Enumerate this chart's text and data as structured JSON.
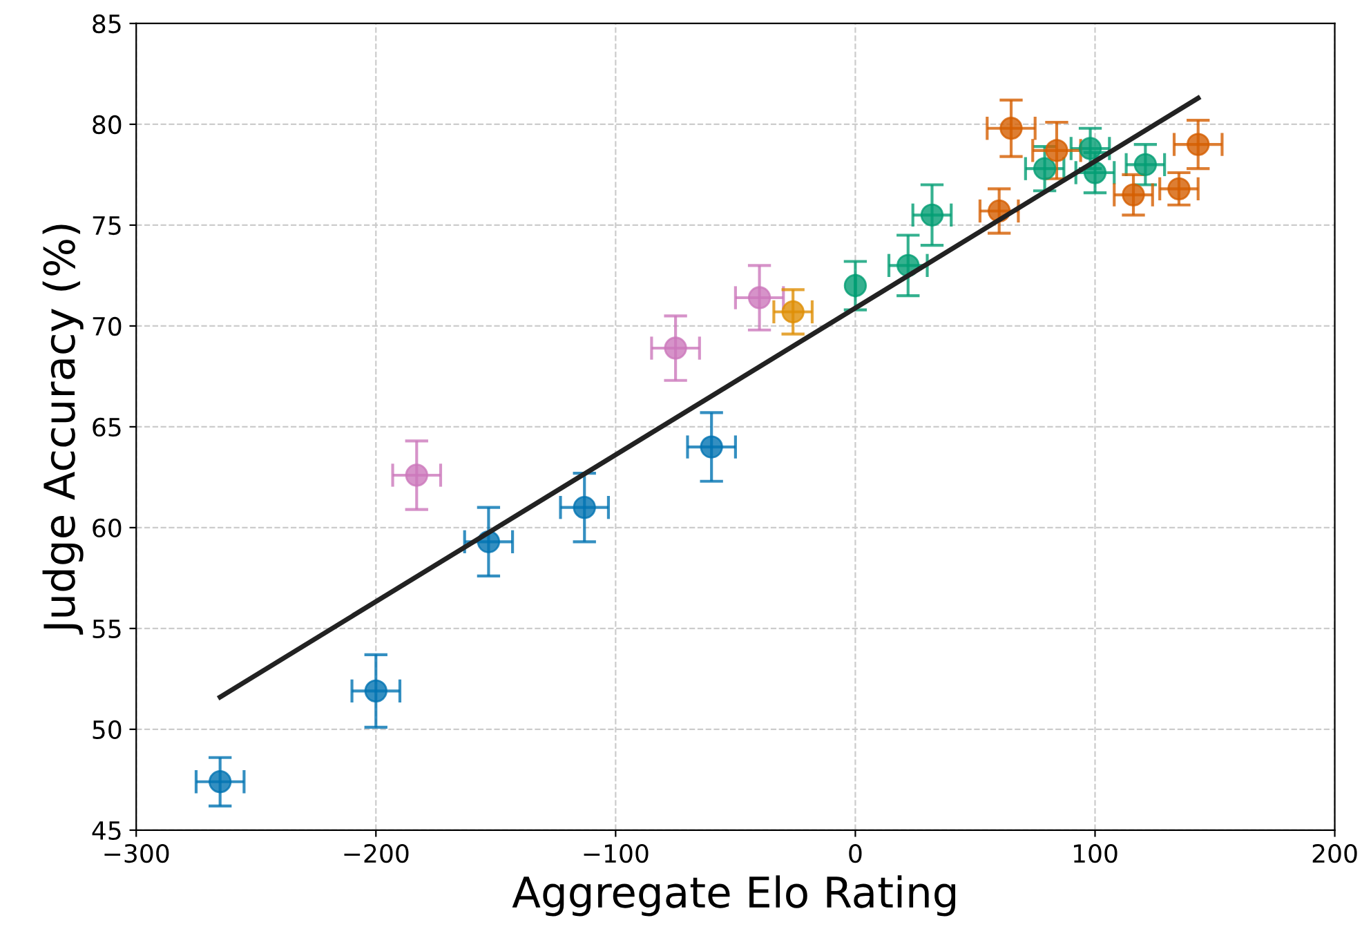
{
  "chart_data": {
    "type": "scatter",
    "xlabel": "Aggregate Elo Rating",
    "ylabel": "Judge Accuracy (%)",
    "xlim": [
      -300,
      200
    ],
    "xticks": [
      {
        "value": -300,
        "label": "−300"
      },
      {
        "value": -200,
        "label": "−200"
      },
      {
        "value": -100,
        "label": "−100"
      },
      0,
      100,
      200
    ],
    "ylim": [
      45,
      85
    ],
    "yticks": [
      45,
      50,
      55,
      60,
      65,
      70,
      75,
      80,
      85
    ],
    "grid": true,
    "marker": "circle",
    "series": [
      {
        "color": "#0173b2",
        "x": [
          -265,
          -200,
          -153,
          -113,
          -60
        ],
        "values": [
          47.4,
          51.9,
          59.3,
          61.0,
          64.0
        ],
        "errors": [
          1.2,
          1.8,
          1.7,
          1.7,
          1.7
        ],
        "xerrors": [
          10,
          10,
          10,
          10,
          10
        ]
      },
      {
        "color": "#cc78bc",
        "x": [
          -183,
          -75,
          -40
        ],
        "values": [
          62.6,
          68.9,
          71.4
        ],
        "errors": [
          1.7,
          1.6,
          1.6
        ],
        "xerrors": [
          10,
          10,
          10
        ]
      },
      {
        "color": "#de8f05",
        "x": [
          -26
        ],
        "values": [
          70.7
        ],
        "errors": [
          1.1
        ],
        "xerrors": [
          8
        ]
      },
      {
        "color": "#029e73",
        "x": [
          0,
          22,
          32,
          79,
          98,
          100,
          121
        ],
        "values": [
          72.0,
          73.0,
          75.5,
          77.8,
          78.8,
          77.6,
          78.0
        ],
        "errors": [
          1.2,
          1.5,
          1.5,
          1.1,
          1.0,
          1.0,
          1.0
        ],
        "xerrors": [
          0,
          8,
          8,
          8,
          8,
          8,
          8
        ]
      },
      {
        "color": "#d55e00",
        "x": [
          60,
          65,
          84,
          116,
          135,
          143
        ],
        "values": [
          75.7,
          79.8,
          78.7,
          76.5,
          76.8,
          79.0
        ],
        "errors": [
          1.1,
          1.4,
          1.4,
          1.0,
          0.8,
          1.2
        ],
        "xerrors": [
          8,
          10,
          10,
          8,
          8,
          10
        ]
      },
      {
        "type": "line",
        "color": "#222222",
        "x": [
          -265,
          143
        ],
        "values": [
          51.6,
          81.3
        ],
        "line_style": "solid",
        "marker": "none"
      }
    ]
  }
}
